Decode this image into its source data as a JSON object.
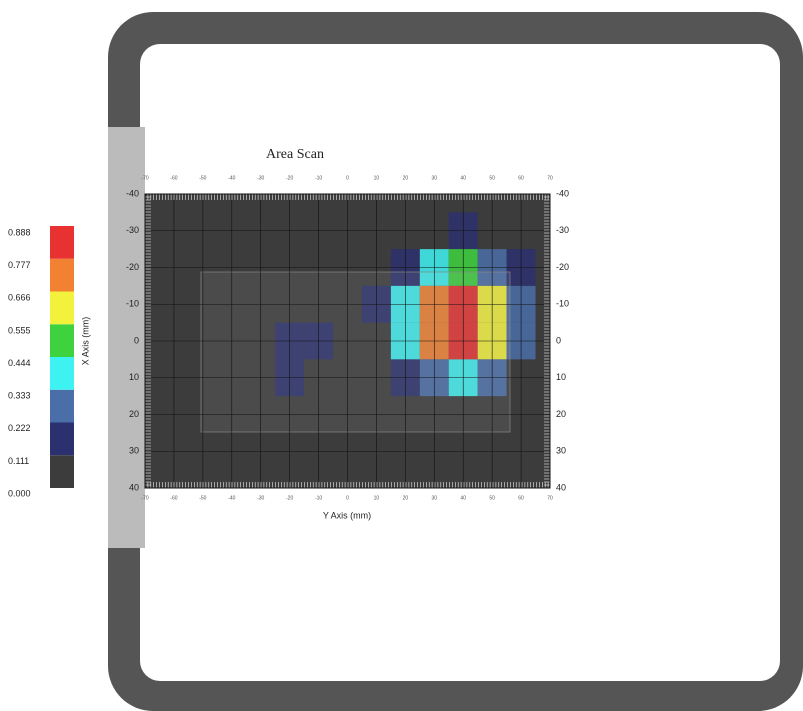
{
  "chart_data": {
    "type": "heatmap",
    "title": "Area Scan",
    "xlabel": "Y Axis (mm)",
    "ylabel": "X Axis (mm)",
    "xlim": [
      -70,
      70
    ],
    "ylim": [
      -40,
      40
    ],
    "y_inverted": true,
    "grid": true,
    "xticks": [
      -70,
      -60,
      -50,
      -40,
      -30,
      -20,
      -10,
      0,
      10,
      20,
      30,
      40,
      50,
      60,
      70
    ],
    "yticks": [
      -40,
      -30,
      -20,
      -10,
      0,
      10,
      20,
      30,
      40
    ],
    "x": [
      -70,
      -60,
      -50,
      -40,
      -30,
      -20,
      -10,
      0,
      10,
      20,
      30,
      40,
      50,
      60,
      70
    ],
    "y": [
      -40,
      -30,
      -20,
      -10,
      0,
      10,
      20,
      30,
      40
    ],
    "z": [
      [
        0,
        0,
        0,
        0,
        0,
        0,
        0,
        0,
        0,
        0.01,
        0.01,
        0.02,
        0.01,
        0,
        0
      ],
      [
        0,
        0,
        0,
        0,
        0,
        0,
        0,
        0,
        0.02,
        0.06,
        0.11,
        0.13,
        0.09,
        0.04,
        0.01
      ],
      [
        0,
        0,
        0,
        0,
        0,
        0,
        0,
        0.01,
        0.06,
        0.21,
        0.41,
        0.48,
        0.33,
        0.14,
        0.04
      ],
      [
        0,
        0,
        0,
        0,
        0,
        0,
        0,
        0.02,
        0.12,
        0.39,
        0.76,
        0.89,
        0.62,
        0.26,
        0.07
      ],
      [
        0,
        0,
        0,
        0,
        0,
        0.15,
        0.12,
        0.02,
        0.11,
        0.37,
        0.71,
        0.83,
        0.58,
        0.24,
        0.06
      ],
      [
        0,
        0,
        0,
        0,
        0,
        0.12,
        0,
        0.01,
        0.05,
        0.17,
        0.33,
        0.39,
        0.27,
        0.11,
        0.03
      ],
      [
        0,
        0,
        0,
        0,
        0,
        0,
        0,
        0,
        0.01,
        0.04,
        0.08,
        0.09,
        0.06,
        0.03,
        0.01
      ],
      [
        0,
        0,
        0,
        0,
        0,
        0,
        0,
        0,
        0,
        0,
        0.01,
        0.01,
        0.01,
        0,
        0
      ],
      [
        0,
        0,
        0,
        0,
        0,
        0,
        0,
        0,
        0,
        0,
        0,
        0,
        0,
        0,
        0
      ]
    ],
    "colorbar": {
      "levels": [
        {
          "value": 0,
          "label": "0.000"
        },
        {
          "value": 0.111,
          "label": "0.111"
        },
        {
          "value": 0.222,
          "label": "0.222"
        },
        {
          "value": 0.333,
          "label": "0.333"
        },
        {
          "value": 0.444,
          "label": "0.444"
        },
        {
          "value": 0.555,
          "label": "0.555"
        },
        {
          "value": 0.666,
          "label": "0.666"
        },
        {
          "value": 0.777,
          "label": "0.777"
        },
        {
          "value": 0.888,
          "label": "0.888"
        }
      ],
      "colors": [
        "#3c3c3c",
        "#2b306e",
        "#4a6ea8",
        "#3ff2f2",
        "#3ed23e",
        "#f2f23c",
        "#f28232",
        "#e83232"
      ]
    }
  }
}
